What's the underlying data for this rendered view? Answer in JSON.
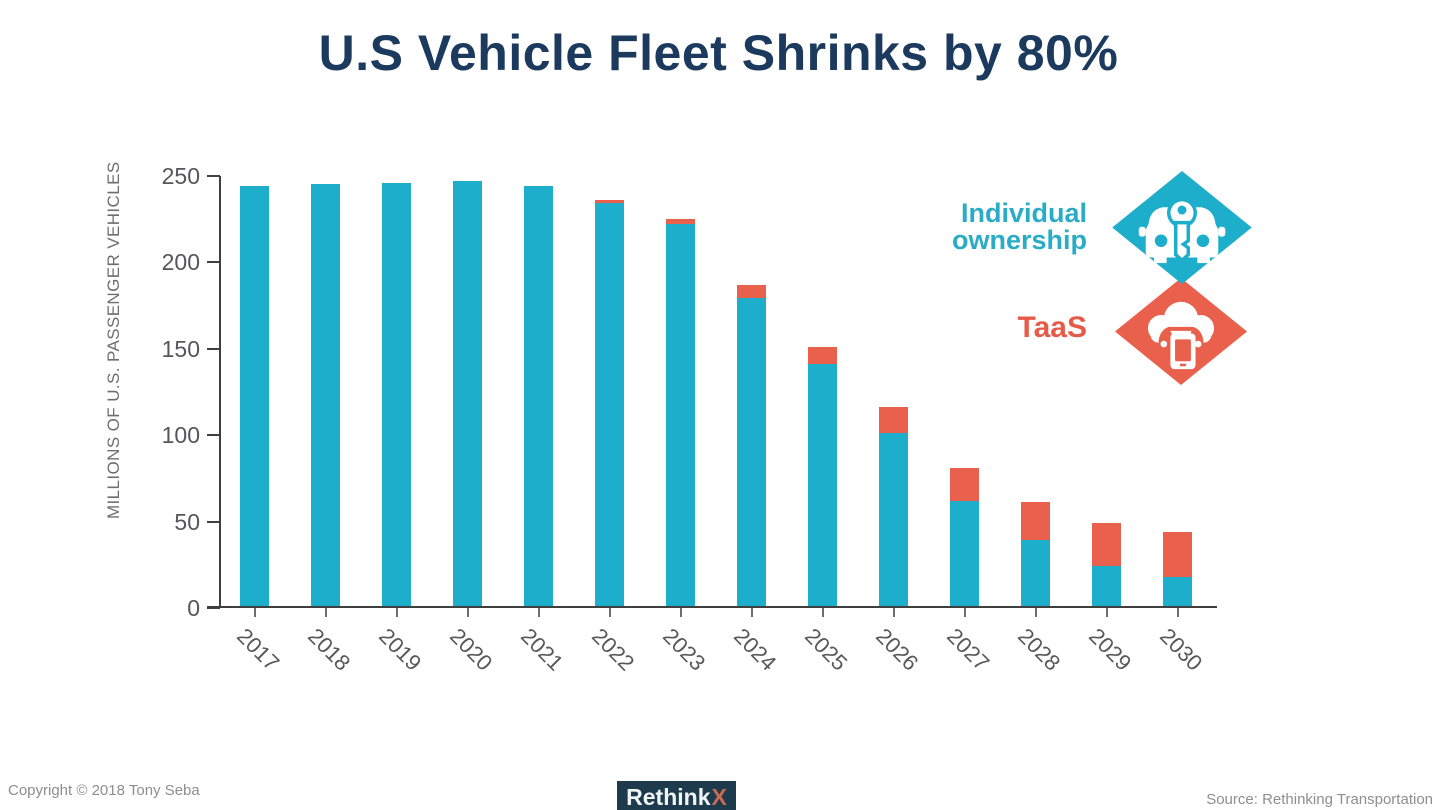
{
  "title": "U.S Vehicle Fleet Shrinks by 80%",
  "colors": {
    "navy": "#1b3a5e",
    "teal": "#1caecb",
    "orange": "#e9614c",
    "legend_teal": "#2bacc6",
    "legend_orange": "#e55b4a",
    "logo_bg": "#1d3b4c",
    "logo_text": "#f2f5f6",
    "logo_x": "#c96a52"
  },
  "legend": {
    "individual_label": "Individual ownership",
    "taas_label": "TaaS",
    "individual_icon": "car-with-key-diamond-icon",
    "taas_icon": "cloud-car-phone-diamond-icon"
  },
  "footer": {
    "copyright": "Copyright © 2018 Tony Seba",
    "logo_rethink": "Rethink",
    "logo_x": "X",
    "source": "Source: Rethinking Transportation"
  },
  "chart_data": {
    "type": "bar",
    "stacked": true,
    "title": "U.S Vehicle Fleet Shrinks by 80%",
    "xlabel": "",
    "ylabel": "MILLIONS OF U.S. PASSENGER VEHICLES",
    "ylim": [
      0,
      250
    ],
    "yticks": [
      0,
      50,
      100,
      150,
      200,
      250
    ],
    "grid": false,
    "legend_position": "right",
    "categories": [
      "2017",
      "2018",
      "2019",
      "2020",
      "2021",
      "2022",
      "2023",
      "2024",
      "2025",
      "2026",
      "2027",
      "2028",
      "2029",
      "2030"
    ],
    "series": [
      {
        "name": "Individual ownership",
        "color": "#1caecb",
        "values": [
          243,
          244,
          245,
          246,
          243,
          233,
          221,
          178,
          140,
          100,
          61,
          38,
          23,
          17
        ]
      },
      {
        "name": "TaaS",
        "color": "#e9614c",
        "values": [
          0,
          0,
          0,
          0,
          0,
          2,
          3,
          8,
          10,
          15,
          19,
          22,
          25,
          26
        ]
      }
    ]
  }
}
